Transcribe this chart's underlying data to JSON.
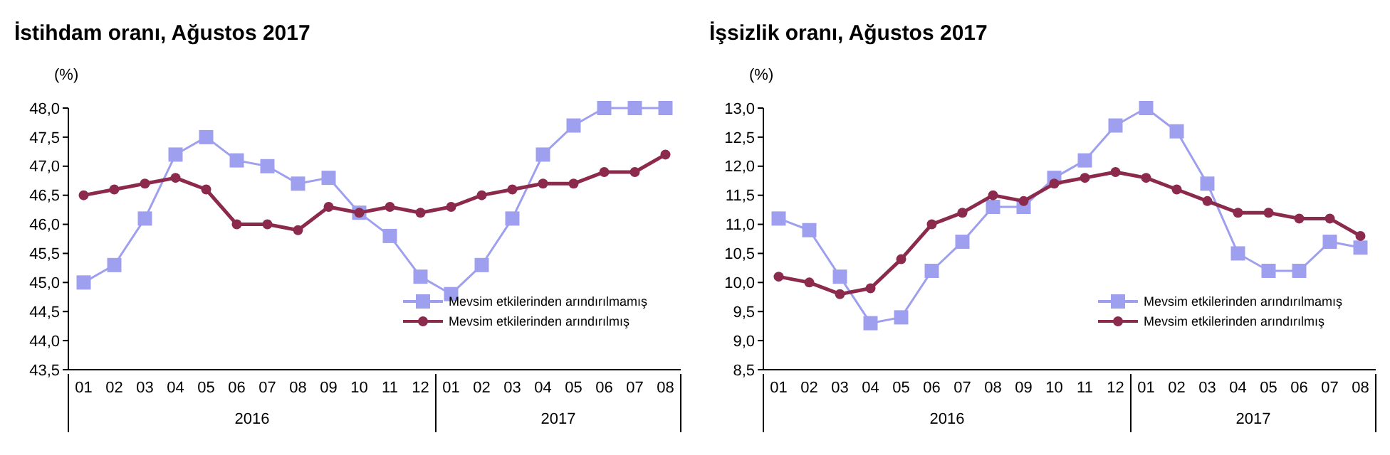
{
  "chart_data": [
    {
      "type": "line",
      "title": "İstihdam oranı, Ağustos 2017",
      "ylabel": "(%)",
      "categories": [
        "01",
        "02",
        "03",
        "04",
        "05",
        "06",
        "07",
        "08",
        "09",
        "10",
        "11",
        "12",
        "01",
        "02",
        "03",
        "04",
        "05",
        "06",
        "07",
        "08"
      ],
      "annotations": [
        "2016",
        "2017"
      ],
      "ylim": [
        43.5,
        48.0
      ],
      "yticks": [
        {
          "value": 43.5,
          "label": "43,5"
        },
        {
          "value": 44,
          "label": "44,0"
        },
        {
          "value": 44.5,
          "label": "44,5"
        },
        {
          "value": 45,
          "label": "45,0"
        },
        {
          "value": 45.5,
          "label": "45,5"
        },
        {
          "value": 46,
          "label": "46,0"
        },
        {
          "value": 46.5,
          "label": "46,5"
        },
        {
          "value": 47,
          "label": "47,0"
        },
        {
          "value": 47.5,
          "label": "47,5"
        },
        {
          "value": 48,
          "label": "48,0"
        }
      ],
      "grid": false,
      "legend": "bottom right",
      "series": [
        {
          "name": "Mevsim etkilerinden arındırılmamış",
          "color": "#9f9ff0",
          "marker": "square",
          "values": [
            45.0,
            45.3,
            46.1,
            47.2,
            47.5,
            47.1,
            47.0,
            46.7,
            46.8,
            46.2,
            45.8,
            45.1,
            44.8,
            45.3,
            46.1,
            47.2,
            47.7,
            48.0,
            48.0,
            48.0
          ]
        },
        {
          "name": "Mevsim etkilerinden arındırılmış",
          "color": "#8b2a4c",
          "marker": "circle",
          "values": [
            46.5,
            46.6,
            46.7,
            46.8,
            46.6,
            46.0,
            46.0,
            45.9,
            46.3,
            46.2,
            46.3,
            46.2,
            46.3,
            46.5,
            46.6,
            46.7,
            46.7,
            46.9,
            46.9,
            47.2
          ]
        }
      ]
    },
    {
      "type": "line",
      "title": "İşsizlik oranı, Ağustos 2017",
      "ylabel": "(%)",
      "categories": [
        "01",
        "02",
        "03",
        "04",
        "05",
        "06",
        "07",
        "08",
        "09",
        "10",
        "11",
        "12",
        "01",
        "02",
        "03",
        "04",
        "05",
        "06",
        "07",
        "08"
      ],
      "annotations": [
        "2016",
        "2017"
      ],
      "ylim": [
        8.5,
        13.0
      ],
      "yticks": [
        {
          "value": 8.5,
          "label": "8,5"
        },
        {
          "value": 9,
          "label": "9,0"
        },
        {
          "value": 9.5,
          "label": "9,5"
        },
        {
          "value": 10,
          "label": "10,0"
        },
        {
          "value": 10.5,
          "label": "10,5"
        },
        {
          "value": 11,
          "label": "11,0"
        },
        {
          "value": 11.5,
          "label": "11,5"
        },
        {
          "value": 12,
          "label": "12,0"
        },
        {
          "value": 12.5,
          "label": "12,5"
        },
        {
          "value": 13,
          "label": "13,0"
        }
      ],
      "grid": false,
      "legend": "bottom right",
      "series": [
        {
          "name": "Mevsim etkilerinden arındırılmamış",
          "color": "#9f9ff0",
          "marker": "square",
          "values": [
            11.1,
            10.9,
            10.1,
            9.3,
            9.4,
            10.2,
            10.7,
            11.3,
            11.3,
            11.8,
            12.1,
            12.7,
            13.0,
            12.6,
            11.7,
            10.5,
            10.2,
            10.2,
            10.7,
            10.6
          ]
        },
        {
          "name": "Mevsim etkilerinden arındırılmış",
          "color": "#8b2a4c",
          "marker": "circle",
          "values": [
            10.1,
            10.0,
            9.8,
            9.9,
            10.4,
            11.0,
            11.2,
            11.5,
            11.4,
            11.7,
            11.8,
            11.9,
            11.8,
            11.6,
            11.4,
            11.2,
            11.2,
            11.1,
            11.1,
            10.8
          ]
        }
      ]
    }
  ]
}
